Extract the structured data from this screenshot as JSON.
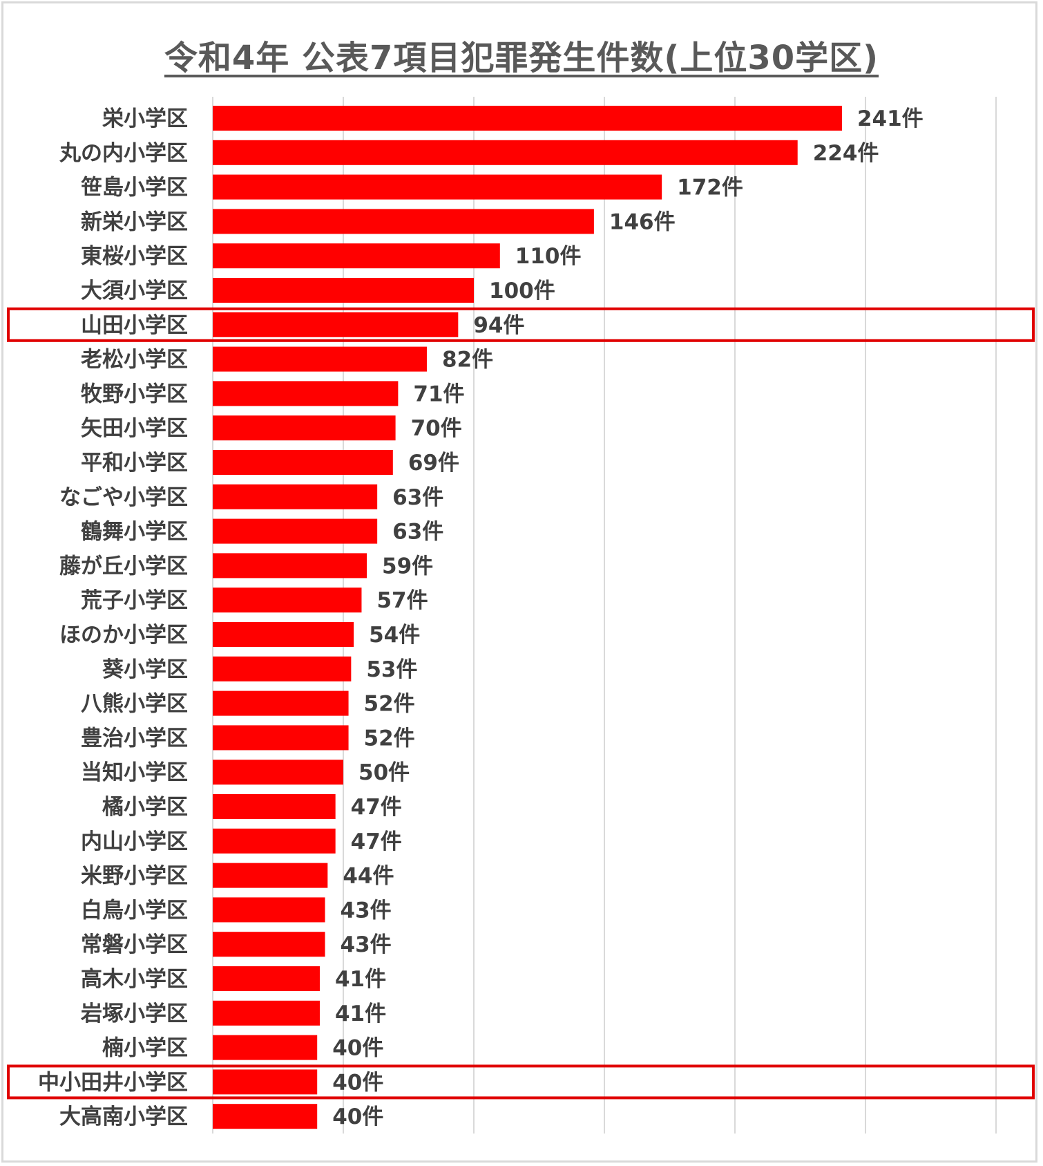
{
  "chart_data": {
    "type": "bar",
    "orientation": "horizontal",
    "title": "令和4年 公表7項目犯罪発生件数(上位30学区)",
    "unit_suffix": "件",
    "xlim": [
      0,
      300
    ],
    "grid": true,
    "bar_color": "#ff0000",
    "highlight_color": "#e00000",
    "highlighted": [
      "山田小学区",
      "中小田井小学区"
    ],
    "categories": [
      "栄小学区",
      "丸の内小学区",
      "笹島小学区",
      "新栄小学区",
      "東桜小学区",
      "大須小学区",
      "山田小学区",
      "老松小学区",
      "牧野小学区",
      "矢田小学区",
      "平和小学区",
      "なごや小学区",
      "鶴舞小学区",
      "藤が丘小学区",
      "荒子小学区",
      "ほのか小学区",
      "葵小学区",
      "八熊小学区",
      "豊治小学区",
      "当知小学区",
      "橘小学区",
      "内山小学区",
      "米野小学区",
      "白鳥小学区",
      "常磐小学区",
      "高木小学区",
      "岩塚小学区",
      "楠小学区",
      "中小田井小学区",
      "大高南小学区"
    ],
    "values": [
      241,
      224,
      172,
      146,
      110,
      100,
      94,
      82,
      71,
      70,
      69,
      63,
      63,
      59,
      57,
      54,
      53,
      52,
      52,
      50,
      47,
      47,
      44,
      43,
      43,
      41,
      41,
      40,
      40,
      40
    ]
  }
}
